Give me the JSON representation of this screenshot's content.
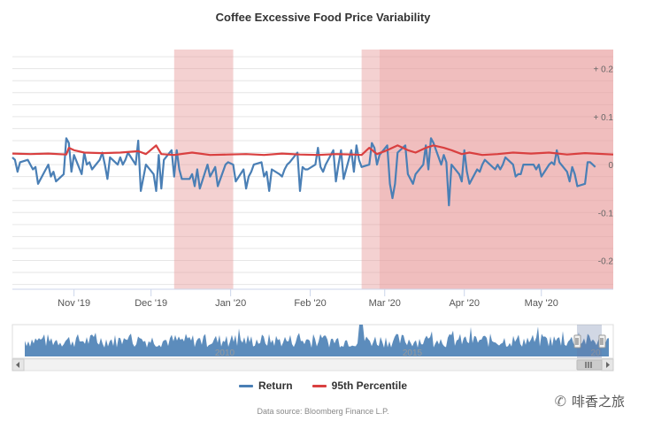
{
  "title": "Coffee Excessive Food Price Variability",
  "source": "Data source: Bloomberg Finance L.P.",
  "watermark": "啡香之旅",
  "colors": {
    "return": "#4a7fb5",
    "percentile": "#d94040",
    "band": "#e79a9a",
    "navigator_fill": "#4a7fb5"
  },
  "chart_data": {
    "type": "line",
    "title": "Coffee Excessive Food Price Variability",
    "x_range": [
      "2019-10-08",
      "2020-05-29"
    ],
    "y_range": [
      -0.26,
      0.24
    ],
    "y_ticks": [
      {
        "value": 0.2,
        "label": "+ 0.2"
      },
      {
        "value": 0.1,
        "label": "+ 0.1"
      },
      {
        "value": 0,
        "label": "0"
      },
      {
        "value": -0.1,
        "label": "-0.1"
      },
      {
        "value": -0.2,
        "label": "-0.2"
      }
    ],
    "x_ticks": [
      {
        "date": "2019-11-01",
        "label": "Nov '19"
      },
      {
        "date": "2019-12-01",
        "label": "Dec '19"
      },
      {
        "date": "2020-01-01",
        "label": "Jan '20"
      },
      {
        "date": "2020-02-01",
        "label": "Feb '20"
      },
      {
        "date": "2020-03-01",
        "label": "Mar '20"
      },
      {
        "date": "2020-04-01",
        "label": "Apr '20"
      },
      {
        "date": "2020-05-01",
        "label": "May '20"
      }
    ],
    "grid": true,
    "legend_position": "bottom",
    "shaded_periods": [
      {
        "start": "2019-12-10",
        "end": "2020-01-02",
        "opacity": 0.45
      },
      {
        "start": "2020-02-21",
        "end": "2020-05-29",
        "opacity": 0.45
      },
      {
        "start": "2020-02-28",
        "end": "2020-05-29",
        "opacity": 0.35
      }
    ],
    "series": [
      {
        "name": "Return",
        "points": [
          [
            "2019-10-08",
            0.015
          ],
          [
            "2019-10-09",
            0.01
          ],
          [
            "2019-10-10",
            -0.015
          ],
          [
            "2019-10-11",
            0.005
          ],
          [
            "2019-10-14",
            0.01
          ],
          [
            "2019-10-15",
            0.0
          ],
          [
            "2019-10-16",
            -0.01
          ],
          [
            "2019-10-17",
            -0.005
          ],
          [
            "2019-10-18",
            -0.04
          ],
          [
            "2019-10-21",
            -0.01
          ],
          [
            "2019-10-22",
            0.0
          ],
          [
            "2019-10-23",
            -0.025
          ],
          [
            "2019-10-24",
            -0.015
          ],
          [
            "2019-10-25",
            -0.035
          ],
          [
            "2019-10-28",
            -0.02
          ],
          [
            "2019-10-29",
            0.055
          ],
          [
            "2019-10-30",
            0.045
          ],
          [
            "2019-10-31",
            -0.015
          ],
          [
            "2019-11-01",
            0.02
          ],
          [
            "2019-11-04",
            -0.02
          ],
          [
            "2019-11-05",
            0.025
          ],
          [
            "2019-11-06",
            0.0
          ],
          [
            "2019-11-07",
            0.005
          ],
          [
            "2019-11-08",
            -0.01
          ],
          [
            "2019-11-11",
            0.01
          ],
          [
            "2019-11-12",
            0.025
          ],
          [
            "2019-11-13",
            0.0
          ],
          [
            "2019-11-14",
            -0.03
          ],
          [
            "2019-11-15",
            0.015
          ],
          [
            "2019-11-18",
            0.0
          ],
          [
            "2019-11-19",
            0.015
          ],
          [
            "2019-11-20",
            0.0
          ],
          [
            "2019-11-21",
            0.01
          ],
          [
            "2019-11-22",
            0.025
          ],
          [
            "2019-11-25",
            0.0
          ],
          [
            "2019-11-26",
            0.05
          ],
          [
            "2019-11-27",
            -0.055
          ],
          [
            "2019-11-29",
            0.0
          ],
          [
            "2019-12-02",
            -0.02
          ],
          [
            "2019-12-03",
            -0.055
          ],
          [
            "2019-12-04",
            0.02
          ],
          [
            "2019-12-05",
            -0.05
          ],
          [
            "2019-12-06",
            0.01
          ],
          [
            "2019-12-09",
            0.03
          ],
          [
            "2019-12-10",
            -0.025
          ],
          [
            "2019-12-11",
            0.03
          ],
          [
            "2019-12-12",
            -0.01
          ],
          [
            "2019-12-13",
            -0.03
          ],
          [
            "2019-12-16",
            -0.03
          ],
          [
            "2019-12-17",
            -0.02
          ],
          [
            "2019-12-18",
            -0.045
          ],
          [
            "2019-12-19",
            -0.01
          ],
          [
            "2019-12-20",
            -0.05
          ],
          [
            "2019-12-23",
            0.0
          ],
          [
            "2019-12-24",
            -0.025
          ],
          [
            "2019-12-26",
            -0.005
          ],
          [
            "2019-12-27",
            -0.045
          ],
          [
            "2019-12-30",
            0.0
          ],
          [
            "2019-12-31",
            0.005
          ],
          [
            "2020-01-02",
            0.0
          ],
          [
            "2020-01-03",
            -0.035
          ],
          [
            "2020-01-06",
            -0.01
          ],
          [
            "2020-01-07",
            -0.05
          ],
          [
            "2020-01-08",
            -0.025
          ],
          [
            "2020-01-09",
            -0.015
          ],
          [
            "2020-01-10",
            0.0
          ],
          [
            "2020-01-13",
            0.005
          ],
          [
            "2020-01-14",
            -0.025
          ],
          [
            "2020-01-15",
            -0.015
          ],
          [
            "2020-01-16",
            -0.055
          ],
          [
            "2020-01-17",
            -0.01
          ],
          [
            "2020-01-20",
            -0.02
          ],
          [
            "2020-01-21",
            -0.025
          ],
          [
            "2020-01-22",
            -0.01
          ],
          [
            "2020-01-23",
            0.0
          ],
          [
            "2020-01-24",
            0.005
          ],
          [
            "2020-01-27",
            0.025
          ],
          [
            "2020-01-28",
            -0.055
          ],
          [
            "2020-01-29",
            -0.005
          ],
          [
            "2020-01-30",
            -0.01
          ],
          [
            "2020-01-31",
            -0.01
          ],
          [
            "2020-02-03",
            0.0
          ],
          [
            "2020-02-04",
            0.035
          ],
          [
            "2020-02-05",
            -0.005
          ],
          [
            "2020-02-06",
            -0.015
          ],
          [
            "2020-02-07",
            0.0
          ],
          [
            "2020-02-10",
            0.03
          ],
          [
            "2020-02-11",
            -0.035
          ],
          [
            "2020-02-12",
            0.0
          ],
          [
            "2020-02-13",
            0.03
          ],
          [
            "2020-02-14",
            -0.03
          ],
          [
            "2020-02-17",
            0.03
          ],
          [
            "2020-02-18",
            -0.015
          ],
          [
            "2020-02-19",
            0.04
          ],
          [
            "2020-02-20",
            0.01
          ],
          [
            "2020-02-21",
            -0.005
          ],
          [
            "2020-02-24",
            0.0
          ],
          [
            "2020-02-25",
            0.045
          ],
          [
            "2020-02-26",
            0.035
          ],
          [
            "2020-02-27",
            0.0
          ],
          [
            "2020-02-28",
            0.02
          ],
          [
            "2020-03-02",
            0.04
          ],
          [
            "2020-03-03",
            -0.04
          ],
          [
            "2020-03-04",
            -0.07
          ],
          [
            "2020-03-05",
            -0.04
          ],
          [
            "2020-03-06",
            0.025
          ],
          [
            "2020-03-09",
            0.04
          ],
          [
            "2020-03-10",
            -0.02
          ],
          [
            "2020-03-11",
            -0.03
          ],
          [
            "2020-03-12",
            -0.04
          ],
          [
            "2020-03-13",
            -0.02
          ],
          [
            "2020-03-16",
            0.0
          ],
          [
            "2020-03-17",
            0.04
          ],
          [
            "2020-03-18",
            -0.01
          ],
          [
            "2020-03-19",
            0.055
          ],
          [
            "2020-03-20",
            0.045
          ],
          [
            "2020-03-23",
            0.0
          ],
          [
            "2020-03-24",
            0.02
          ],
          [
            "2020-03-25",
            0.005
          ],
          [
            "2020-03-26",
            -0.085
          ],
          [
            "2020-03-27",
            0.0
          ],
          [
            "2020-03-30",
            -0.02
          ],
          [
            "2020-03-31",
            -0.035
          ],
          [
            "2020-04-01",
            0.03
          ],
          [
            "2020-04-02",
            -0.015
          ],
          [
            "2020-04-03",
            -0.04
          ],
          [
            "2020-04-06",
            -0.01
          ],
          [
            "2020-04-07",
            -0.015
          ],
          [
            "2020-04-08",
            0.0
          ],
          [
            "2020-04-09",
            0.01
          ],
          [
            "2020-04-13",
            -0.01
          ],
          [
            "2020-04-14",
            0.0
          ],
          [
            "2020-04-15",
            -0.01
          ],
          [
            "2020-04-16",
            0.0
          ],
          [
            "2020-04-17",
            0.015
          ],
          [
            "2020-04-20",
            0.0
          ],
          [
            "2020-04-21",
            -0.025
          ],
          [
            "2020-04-22",
            -0.02
          ],
          [
            "2020-04-23",
            -0.02
          ],
          [
            "2020-04-24",
            0.0
          ],
          [
            "2020-04-27",
            0.0
          ],
          [
            "2020-04-28",
            0.0
          ],
          [
            "2020-04-29",
            -0.01
          ],
          [
            "2020-04-30",
            0.0
          ],
          [
            "2020-05-01",
            -0.025
          ],
          [
            "2020-05-04",
            0.0
          ],
          [
            "2020-05-05",
            0.005
          ],
          [
            "2020-05-06",
            0.0
          ],
          [
            "2020-05-07",
            0.03
          ],
          [
            "2020-05-08",
            0.005
          ],
          [
            "2020-05-11",
            -0.015
          ],
          [
            "2020-05-12",
            -0.035
          ],
          [
            "2020-05-13",
            -0.005
          ],
          [
            "2020-05-14",
            -0.02
          ],
          [
            "2020-05-15",
            -0.045
          ],
          [
            "2020-05-18",
            -0.04
          ],
          [
            "2020-05-19",
            0.005
          ],
          [
            "2020-05-20",
            0.005
          ],
          [
            "2020-05-21",
            0.0
          ],
          [
            "2020-05-22",
            -0.005
          ]
        ]
      },
      {
        "name": "95th Percentile",
        "points": [
          [
            "2019-10-08",
            0.023
          ],
          [
            "2019-10-15",
            0.022
          ],
          [
            "2019-10-22",
            0.023
          ],
          [
            "2019-10-29",
            0.021
          ],
          [
            "2019-10-30",
            0.035
          ],
          [
            "2019-11-01",
            0.03
          ],
          [
            "2019-11-05",
            0.025
          ],
          [
            "2019-11-12",
            0.024
          ],
          [
            "2019-11-19",
            0.025
          ],
          [
            "2019-11-26",
            0.028
          ],
          [
            "2019-11-29",
            0.022
          ],
          [
            "2019-12-03",
            0.04
          ],
          [
            "2019-12-05",
            0.022
          ],
          [
            "2019-12-10",
            0.02
          ],
          [
            "2019-12-17",
            0.025
          ],
          [
            "2019-12-24",
            0.02
          ],
          [
            "2019-12-31",
            0.021
          ],
          [
            "2020-01-07",
            0.022
          ],
          [
            "2020-01-14",
            0.02
          ],
          [
            "2020-01-21",
            0.023
          ],
          [
            "2020-01-28",
            0.021
          ],
          [
            "2020-02-04",
            0.02
          ],
          [
            "2020-02-11",
            0.022
          ],
          [
            "2020-02-18",
            0.021
          ],
          [
            "2020-02-21",
            0.02
          ],
          [
            "2020-02-24",
            0.035
          ],
          [
            "2020-02-27",
            0.022
          ],
          [
            "2020-03-02",
            0.03
          ],
          [
            "2020-03-06",
            0.04
          ],
          [
            "2020-03-10",
            0.03
          ],
          [
            "2020-03-13",
            0.025
          ],
          [
            "2020-03-17",
            0.035
          ],
          [
            "2020-03-20",
            0.04
          ],
          [
            "2020-03-24",
            0.035
          ],
          [
            "2020-03-27",
            0.03
          ],
          [
            "2020-03-31",
            0.022
          ],
          [
            "2020-04-03",
            0.025
          ],
          [
            "2020-04-08",
            0.02
          ],
          [
            "2020-04-14",
            0.022
          ],
          [
            "2020-04-20",
            0.025
          ],
          [
            "2020-04-27",
            0.023
          ],
          [
            "2020-05-04",
            0.025
          ],
          [
            "2020-05-11",
            0.021
          ],
          [
            "2020-05-18",
            0.024
          ],
          [
            "2020-05-29",
            0.021
          ]
        ]
      }
    ],
    "navigator": {
      "labels": [
        "2010",
        "2015",
        "20"
      ],
      "selected": true
    }
  }
}
